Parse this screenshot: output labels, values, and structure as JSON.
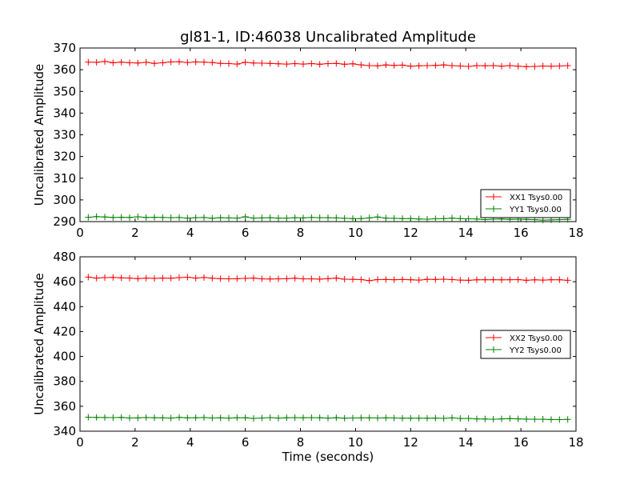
{
  "title": "gl81-1, ID:46038 Uncalibrated Amplitude",
  "chart_data": [
    {
      "type": "line",
      "ylabel": "Uncalibrated Amplitude",
      "xlabel": "",
      "xlim": [
        0,
        18
      ],
      "ylim": [
        290,
        370
      ],
      "xticks": [
        "0",
        "2",
        "4",
        "6",
        "8",
        "10",
        "12",
        "14",
        "16",
        "18"
      ],
      "yticks": [
        "290",
        "300",
        "310",
        "320",
        "330",
        "340",
        "350",
        "360",
        "370"
      ],
      "legend_position": "lower-right",
      "grid": false,
      "x": [
        0.3,
        0.6,
        0.9,
        1.2,
        1.5,
        1.8,
        2.1,
        2.4,
        2.7,
        3.0,
        3.3,
        3.6,
        3.9,
        4.2,
        4.5,
        4.8,
        5.1,
        5.4,
        5.7,
        6.0,
        6.3,
        6.6,
        6.9,
        7.2,
        7.5,
        7.8,
        8.1,
        8.4,
        8.7,
        9.0,
        9.3,
        9.6,
        9.9,
        10.2,
        10.5,
        10.8,
        11.1,
        11.4,
        11.7,
        12.0,
        12.3,
        12.6,
        12.9,
        13.2,
        13.5,
        13.8,
        14.1,
        14.4,
        14.7,
        15.0,
        15.3,
        15.6,
        15.9,
        16.2,
        16.5,
        16.8,
        17.1,
        17.4,
        17.7
      ],
      "series": [
        {
          "name": "XX1 Tsys0.00",
          "color": "#ff0000",
          "values": [
            363.5,
            363.4,
            363.8,
            363.2,
            363.5,
            363.2,
            363.1,
            363.4,
            362.9,
            363.2,
            363.6,
            363.7,
            363.3,
            363.6,
            363.5,
            363.3,
            362.9,
            362.8,
            362.6,
            363.4,
            363.1,
            363.0,
            362.9,
            362.7,
            362.6,
            362.8,
            362.6,
            362.8,
            362.5,
            362.8,
            362.9,
            362.5,
            362.7,
            362.2,
            361.9,
            361.8,
            362.2,
            362.0,
            362.1,
            361.6,
            361.8,
            361.9,
            362.0,
            362.2,
            361.9,
            361.7,
            361.5,
            361.9,
            361.8,
            361.9,
            361.6,
            361.9,
            361.6,
            361.4,
            361.5,
            361.7,
            361.6,
            361.7,
            361.9
          ]
        },
        {
          "name": "YY1 Tsys0.00",
          "color": "#008000",
          "values": [
            292.0,
            292.3,
            292.1,
            291.9,
            292.0,
            291.9,
            292.2,
            291.9,
            292.0,
            291.9,
            291.8,
            291.9,
            291.6,
            291.8,
            291.9,
            291.5,
            291.8,
            291.7,
            291.6,
            292.2,
            291.6,
            291.7,
            291.8,
            291.6,
            291.6,
            291.8,
            291.7,
            291.9,
            291.8,
            291.8,
            291.7,
            291.5,
            291.4,
            291.4,
            291.7,
            292.1,
            291.6,
            291.5,
            291.4,
            291.4,
            291.2,
            291.1,
            291.3,
            291.4,
            291.6,
            291.4,
            291.3,
            291.2,
            290.9,
            291.1,
            291.2,
            291.0,
            291.1,
            291.0,
            290.9,
            290.7,
            290.8,
            290.9,
            291.0
          ]
        }
      ]
    },
    {
      "type": "line",
      "ylabel": "Uncalibrated Amplitude",
      "xlabel": "Time (seconds)",
      "xlim": [
        0,
        18
      ],
      "ylim": [
        340,
        480
      ],
      "xticks": [
        "0",
        "2",
        "4",
        "6",
        "8",
        "10",
        "12",
        "14",
        "16",
        "18"
      ],
      "yticks": [
        "340",
        "360",
        "380",
        "400",
        "420",
        "440",
        "460",
        "480"
      ],
      "legend_position": "center-right",
      "grid": false,
      "x": [
        0.3,
        0.6,
        0.9,
        1.2,
        1.5,
        1.8,
        2.1,
        2.4,
        2.7,
        3.0,
        3.3,
        3.6,
        3.9,
        4.2,
        4.5,
        4.8,
        5.1,
        5.4,
        5.7,
        6.0,
        6.3,
        6.6,
        6.9,
        7.2,
        7.5,
        7.8,
        8.1,
        8.4,
        8.7,
        9.0,
        9.3,
        9.6,
        9.9,
        10.2,
        10.5,
        10.8,
        11.1,
        11.4,
        11.7,
        12.0,
        12.3,
        12.6,
        12.9,
        13.2,
        13.5,
        13.8,
        14.1,
        14.4,
        14.7,
        15.0,
        15.3,
        15.6,
        15.9,
        16.2,
        16.5,
        16.8,
        17.1,
        17.4,
        17.7
      ],
      "series": [
        {
          "name": "XX2 Tsys0.00",
          "color": "#ff0000",
          "values": [
            463.7,
            462.9,
            463.3,
            463.4,
            463.1,
            462.9,
            462.5,
            462.9,
            462.7,
            462.9,
            462.8,
            463.3,
            463.6,
            462.9,
            463.4,
            462.8,
            462.4,
            462.3,
            462.4,
            462.7,
            462.9,
            462.3,
            462.2,
            462.3,
            462.4,
            462.8,
            462.3,
            462.3,
            462.1,
            462.4,
            462.9,
            462.0,
            461.9,
            461.7,
            460.9,
            461.7,
            461.8,
            461.6,
            461.8,
            461.6,
            461.3,
            461.9,
            461.8,
            462.0,
            461.7,
            461.3,
            461.1,
            461.5,
            461.6,
            461.6,
            461.5,
            461.6,
            461.7,
            461.1,
            461.5,
            461.3,
            461.6,
            461.6,
            461.1
          ]
        },
        {
          "name": "YY2 Tsys0.00",
          "color": "#008000",
          "values": [
            351.2,
            351.1,
            351.0,
            350.9,
            351.1,
            350.6,
            350.7,
            351.0,
            350.8,
            350.7,
            350.5,
            351.1,
            350.7,
            350.8,
            351.0,
            350.6,
            350.7,
            350.5,
            350.8,
            350.8,
            350.3,
            350.6,
            350.9,
            350.5,
            350.8,
            350.9,
            350.8,
            350.9,
            350.8,
            350.5,
            350.8,
            350.4,
            350.6,
            350.7,
            350.7,
            350.6,
            350.7,
            350.6,
            350.4,
            350.4,
            350.4,
            350.4,
            350.5,
            350.3,
            350.7,
            350.2,
            350.3,
            349.9,
            349.8,
            349.6,
            349.9,
            350.1,
            349.9,
            349.7,
            349.6,
            349.6,
            349.4,
            349.3,
            349.5
          ]
        }
      ]
    }
  ]
}
